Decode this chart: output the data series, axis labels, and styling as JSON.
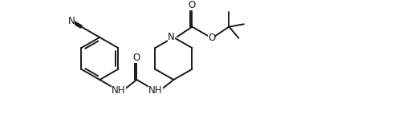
{
  "bg_color": "#ffffff",
  "line_color": "#1a1a1a",
  "line_width": 1.4,
  "font_size": 8.5,
  "fig_width": 4.96,
  "fig_height": 1.48,
  "dpi": 100,
  "xlim": [
    0,
    10.5
  ],
  "ylim": [
    -0.5,
    3.2
  ]
}
